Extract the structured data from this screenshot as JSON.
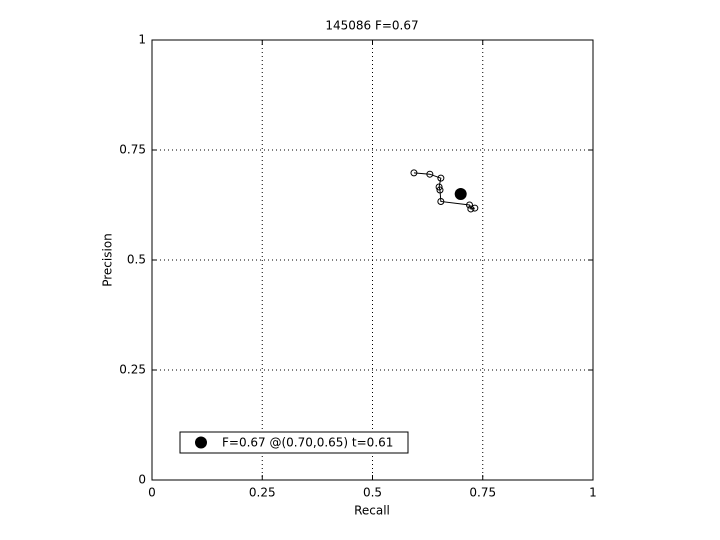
{
  "chart_data": {
    "type": "line",
    "title": "145086 F=0.67",
    "x_label": "Recall",
    "y_label": "Precision",
    "series": [
      {
        "color": "#000000",
        "x": [
          0.594,
          0.63,
          0.655,
          0.651,
          0.653,
          0.655,
          0.72,
          0.723,
          0.732
        ],
        "values": [
          0.698,
          0.695,
          0.686,
          0.666,
          0.659,
          0.633,
          0.625,
          0.616,
          0.618
        ]
      }
    ],
    "best_point": {
      "name": "F=0.67 @(0.70,0.65) t=0.61",
      "x": 0.7,
      "y": 0.65,
      "color": "#000000"
    },
    "xlim": [
      0,
      1
    ],
    "ylim": [
      0,
      1
    ],
    "xticks": [
      0,
      0.25,
      0.5,
      0.75,
      1
    ],
    "yticks": [
      0,
      0.25,
      0.5,
      0.75,
      1
    ],
    "grid": true,
    "legend_position": "lower-left"
  }
}
